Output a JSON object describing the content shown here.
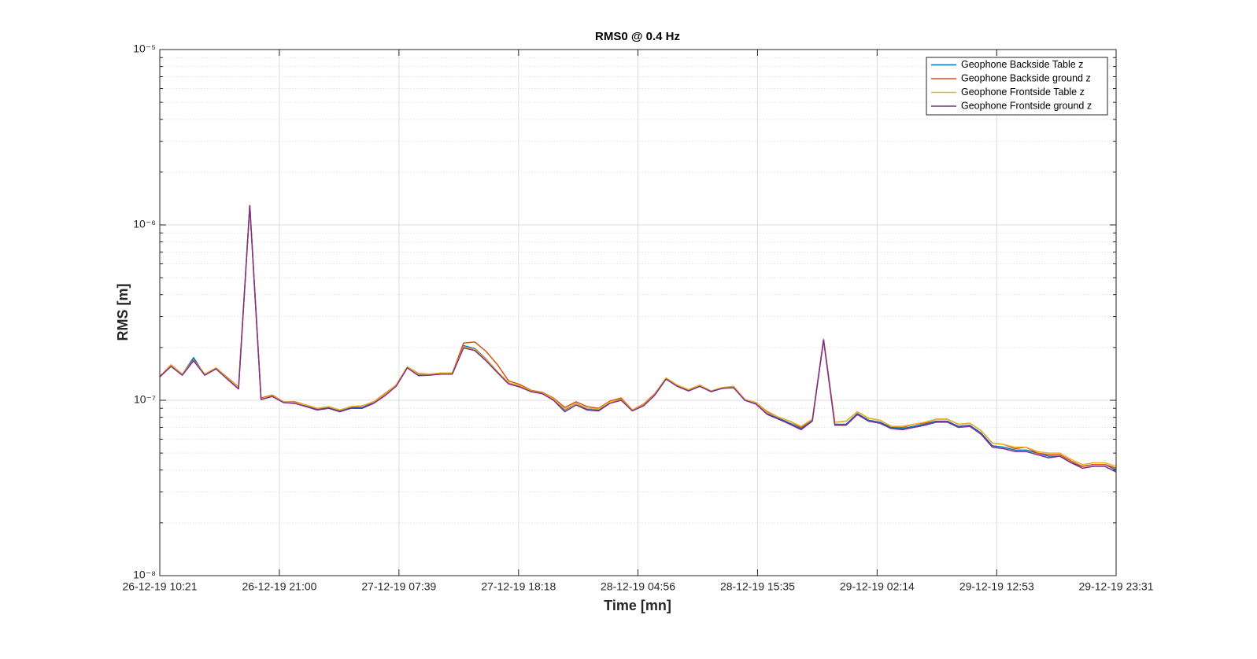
{
  "chart_data": {
    "type": "line",
    "title": "RMS0 @ 0.4 Hz",
    "xlabel": "Time [mn]",
    "ylabel": "RMS [m]",
    "yscale": "log",
    "grid": true,
    "legend": "northeast",
    "xlim": [
      "26-12-19 10:21",
      "29-12-19 23:31"
    ],
    "xticks": [
      "26-12-19 10:21",
      "26-12-19 21:00",
      "27-12-19 07:39",
      "27-12-19 18:18",
      "28-12-19 04:56",
      "28-12-19 15:35",
      "29-12-19 02:14",
      "29-12-19 12:53",
      "29-12-19 23:31"
    ],
    "ylim": [
      1e-08,
      1e-05
    ],
    "yticks": [
      {
        "value": 1e-08,
        "label": "10⁻⁸"
      },
      {
        "value": 1e-07,
        "label": "10⁻⁷"
      },
      {
        "value": 1e-06,
        "label": "10⁻⁶"
      },
      {
        "value": 1e-05,
        "label": "10⁻⁵"
      }
    ],
    "yminorticks": [
      2e-08,
      3e-08,
      4e-08,
      5e-08,
      6e-08,
      7e-08,
      8e-08,
      9e-08,
      2e-07,
      3e-07,
      4e-07,
      5e-07,
      6e-07,
      7e-07,
      8e-07,
      9e-07,
      2e-06,
      3e-06,
      4e-06,
      5e-06,
      6e-06,
      7e-06,
      8e-06,
      9e-06
    ],
    "series": [
      {
        "name": "Geophone Backside Table z",
        "color": "#0072bd",
        "values": [
          1.36e-07,
          1.57e-07,
          1.4e-07,
          1.75e-07,
          1.39e-07,
          1.52e-07,
          1.33e-07,
          1.17e-07,
          1.29e-06,
          1.02e-07,
          1.06e-07,
          9.8e-08,
          9.7e-08,
          9.3e-08,
          8.9e-08,
          9.1e-08,
          8.7e-08,
          9.1e-08,
          9.1e-08,
          9.7e-08,
          1.07e-07,
          1.21e-07,
          1.54e-07,
          1.39e-07,
          1.4e-07,
          1.42e-07,
          1.42e-07,
          2.05e-07,
          1.97e-07,
          1.72e-07,
          1.46e-07,
          1.25e-07,
          1.2e-07,
          1.12e-07,
          1.09e-07,
          1.01e-07,
          8.8e-08,
          9.6e-08,
          8.9e-08,
          8.8e-08,
          9.8e-08,
          1.02e-07,
          8.8e-08,
          9.4e-08,
          1.08e-07,
          1.33e-07,
          1.21e-07,
          1.14e-07,
          1.21e-07,
          1.12e-07,
          1.17e-07,
          1.19e-07,
          1.01e-07,
          9.6e-08,
          8.4e-08,
          7.9e-08,
          7.4e-08,
          6.9e-08,
          7.7e-08,
          2.21e-07,
          7.3e-08,
          7.3e-08,
          8.4e-08,
          7.7e-08,
          7.5e-08,
          7e-08,
          6.9e-08,
          7.1e-08,
          7.3e-08,
          7.6e-08,
          7.6e-08,
          7.1e-08,
          7.2e-08,
          6.5e-08,
          5.5e-08,
          5.4e-08,
          5.2e-08,
          5.2e-08,
          5e-08,
          4.8e-08,
          4.8e-08,
          4.4e-08,
          4.2e-08,
          4.3e-08,
          4.3e-08,
          4e-08
        ]
      },
      {
        "name": "Geophone Backside ground z",
        "color": "#d95319",
        "values": [
          1.37e-07,
          1.59e-07,
          1.41e-07,
          1.7e-07,
          1.41e-07,
          1.53e-07,
          1.35e-07,
          1.19e-07,
          1.29e-06,
          1.03e-07,
          1.07e-07,
          9.8e-08,
          9.8e-08,
          9.4e-08,
          9e-08,
          9.2e-08,
          8.8e-08,
          9.2e-08,
          9.3e-08,
          9.8e-08,
          1.09e-07,
          1.22e-07,
          1.55e-07,
          1.42e-07,
          1.41e-07,
          1.43e-07,
          1.43e-07,
          2.12e-07,
          2.15e-07,
          1.9e-07,
          1.6e-07,
          1.29e-07,
          1.23e-07,
          1.14e-07,
          1.11e-07,
          1.03e-07,
          9.1e-08,
          9.8e-08,
          9.2e-08,
          9e-08,
          9.9e-08,
          1.03e-07,
          8.8e-08,
          9.5e-08,
          1.09e-07,
          1.34e-07,
          1.22e-07,
          1.15e-07,
          1.22e-07,
          1.13e-07,
          1.18e-07,
          1.2e-07,
          1.01e-07,
          9.7e-08,
          8.6e-08,
          8e-08,
          7.6e-08,
          7e-08,
          7.8e-08,
          2.23e-07,
          7.5e-08,
          7.6e-08,
          8.6e-08,
          7.9e-08,
          7.7e-08,
          7.1e-08,
          7e-08,
          7.3e-08,
          7.4e-08,
          7.8e-08,
          7.8e-08,
          7.3e-08,
          7.4e-08,
          6.7e-08,
          5.7e-08,
          5.6e-08,
          5.3e-08,
          5.4e-08,
          5e-08,
          4.9e-08,
          4.9e-08,
          4.5e-08,
          4.2e-08,
          4.3e-08,
          4.3e-08,
          4.1e-08
        ]
      },
      {
        "name": "Geophone Frontside Table z",
        "color": "#edb120",
        "values": [
          1.37e-07,
          1.58e-07,
          1.41e-07,
          1.69e-07,
          1.41e-07,
          1.53e-07,
          1.34e-07,
          1.18e-07,
          1.29e-06,
          1.02e-07,
          1.06e-07,
          9.8e-08,
          9.7e-08,
          9.4e-08,
          9e-08,
          9.2e-08,
          8.8e-08,
          9.2e-08,
          9.3e-08,
          9.8e-08,
          1.08e-07,
          1.22e-07,
          1.55e-07,
          1.41e-07,
          1.41e-07,
          1.43e-07,
          1.43e-07,
          2.02e-07,
          1.95e-07,
          1.71e-07,
          1.46e-07,
          1.26e-07,
          1.21e-07,
          1.13e-07,
          1.1e-07,
          1.02e-07,
          8.9e-08,
          9.6e-08,
          9e-08,
          8.9e-08,
          9.8e-08,
          1.01e-07,
          8.8e-08,
          9.4e-08,
          1.08e-07,
          1.34e-07,
          1.22e-07,
          1.15e-07,
          1.22e-07,
          1.13e-07,
          1.18e-07,
          1.2e-07,
          1.01e-07,
          9.7e-08,
          8.5e-08,
          8e-08,
          7.6e-08,
          7.1e-08,
          7.8e-08,
          2.22e-07,
          7.5e-08,
          7.6e-08,
          8.6e-08,
          7.9e-08,
          7.7e-08,
          7.1e-08,
          7.1e-08,
          7.3e-08,
          7.5e-08,
          7.8e-08,
          7.8e-08,
          7.3e-08,
          7.4e-08,
          6.7e-08,
          5.7e-08,
          5.6e-08,
          5.4e-08,
          5.4e-08,
          5.1e-08,
          5e-08,
          5e-08,
          4.6e-08,
          4.3e-08,
          4.4e-08,
          4.4e-08,
          4.2e-08
        ]
      },
      {
        "name": "Geophone Frontside ground z",
        "color": "#7e2f8e",
        "values": [
          1.36e-07,
          1.56e-07,
          1.39e-07,
          1.68e-07,
          1.39e-07,
          1.51e-07,
          1.32e-07,
          1.16e-07,
          1.29e-06,
          1.01e-07,
          1.05e-07,
          9.7e-08,
          9.6e-08,
          9.2e-08,
          8.8e-08,
          9e-08,
          8.6e-08,
          9e-08,
          9e-08,
          9.6e-08,
          1.06e-07,
          1.2e-07,
          1.53e-07,
          1.38e-07,
          1.39e-07,
          1.41e-07,
          1.41e-07,
          1.99e-07,
          1.92e-07,
          1.68e-07,
          1.44e-07,
          1.24e-07,
          1.19e-07,
          1.12e-07,
          1.09e-07,
          1e-07,
          8.6e-08,
          9.4e-08,
          8.8e-08,
          8.7e-08,
          9.6e-08,
          1e-07,
          8.7e-08,
          9.3e-08,
          1.07e-07,
          1.32e-07,
          1.2e-07,
          1.13e-07,
          1.2e-07,
          1.12e-07,
          1.17e-07,
          1.18e-07,
          1e-07,
          9.5e-08,
          8.3e-08,
          7.8e-08,
          7.3e-08,
          6.8e-08,
          7.6e-08,
          2.21e-07,
          7.2e-08,
          7.2e-08,
          8.3e-08,
          7.6e-08,
          7.4e-08,
          6.9e-08,
          6.8e-08,
          7e-08,
          7.2e-08,
          7.5e-08,
          7.5e-08,
          7e-08,
          7.1e-08,
          6.4e-08,
          5.4e-08,
          5.3e-08,
          5.1e-08,
          5.1e-08,
          4.9e-08,
          4.7e-08,
          4.8e-08,
          4.4e-08,
          4.1e-08,
          4.2e-08,
          4.2e-08,
          3.9e-08
        ]
      }
    ]
  }
}
